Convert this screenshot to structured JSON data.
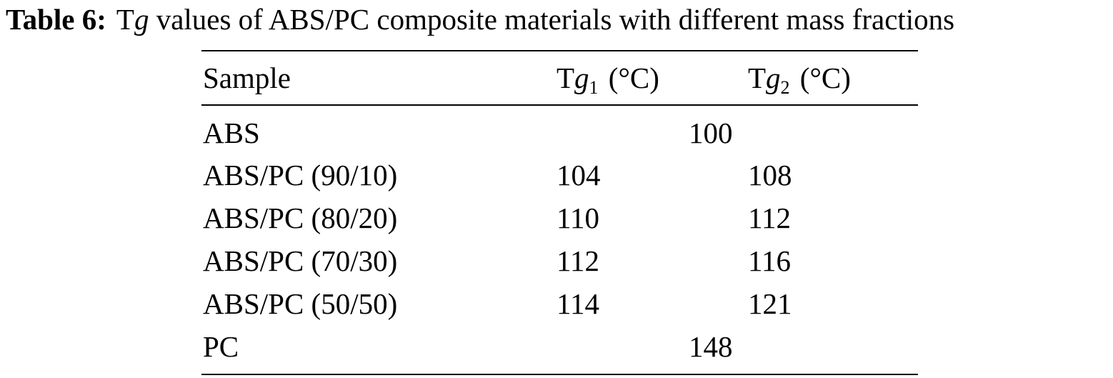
{
  "caption": {
    "label": "Table 6:",
    "text_prefix": "T",
    "text_italic": "g",
    "text_suffix": " values of ABS/PC composite materials with different mass fractions"
  },
  "table": {
    "headers": {
      "sample": "Sample",
      "tg1": {
        "prefix": "T",
        "italic": "g",
        "subscript": "1",
        "unit": "(°C)"
      },
      "tg2": {
        "prefix": "T",
        "italic": "g",
        "subscript": "2",
        "unit": "(°C)"
      }
    },
    "rows": [
      {
        "sample": "ABS",
        "merged": "100"
      },
      {
        "sample": "ABS/PC (90/10)",
        "tg1": "104",
        "tg2": "108"
      },
      {
        "sample": "ABS/PC (80/20)",
        "tg1": "110",
        "tg2": "112"
      },
      {
        "sample": "ABS/PC (70/30)",
        "tg1": "112",
        "tg2": "116"
      },
      {
        "sample": "ABS/PC (50/50)",
        "tg1": "114",
        "tg2": "121"
      },
      {
        "sample": "PC",
        "merged": "148"
      }
    ]
  }
}
